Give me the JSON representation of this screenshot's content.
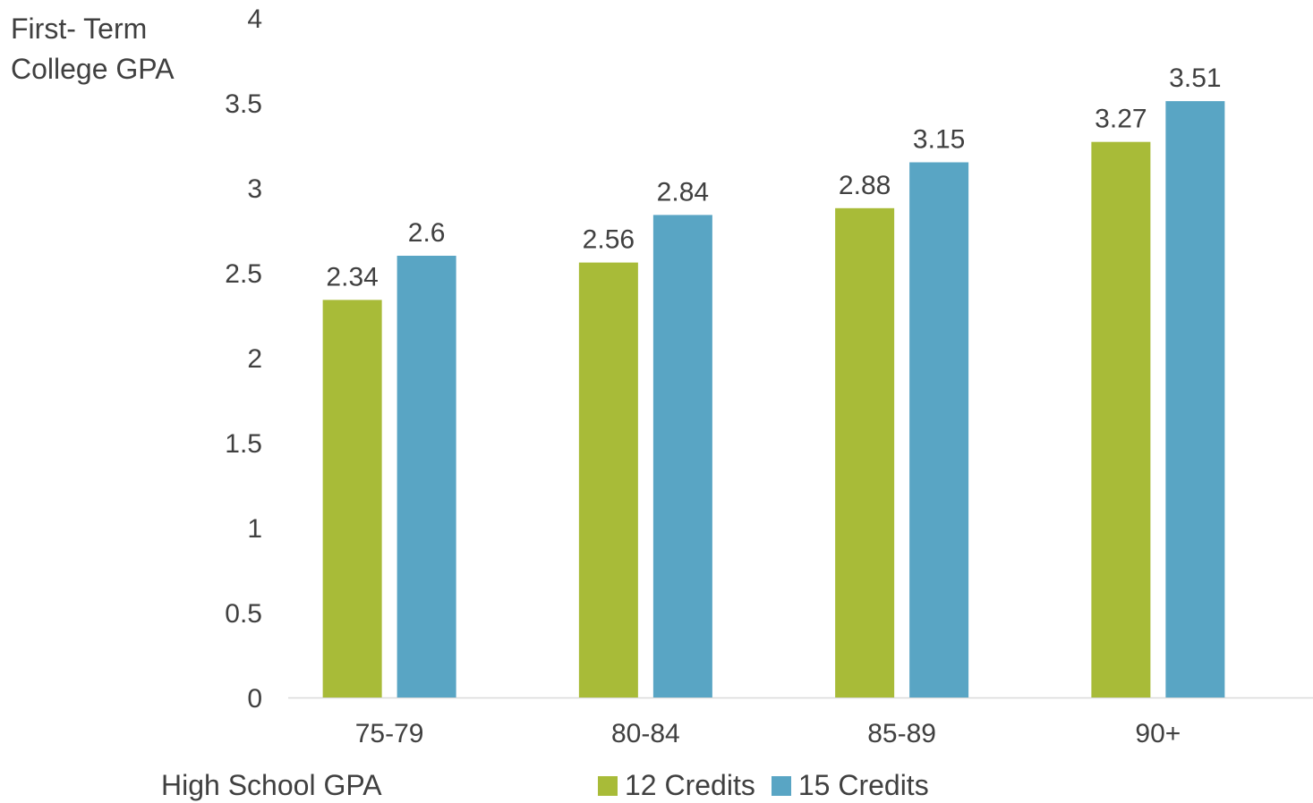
{
  "chart_data": {
    "type": "bar",
    "title": "",
    "ylabel": "First- Term\nCollege GPA",
    "xlabel": "High School GPA",
    "ylim": [
      0,
      4
    ],
    "yticks": [
      "0",
      "0.5",
      "1",
      "1.5",
      "2",
      "2.5",
      "3",
      "3.5",
      "4"
    ],
    "categories": [
      "75-79",
      "80-84",
      "85-89",
      "90+"
    ],
    "series": [
      {
        "name": "12 Credits",
        "color": "#A8BB38",
        "values": [
          2.34,
          2.56,
          2.88,
          3.27
        ]
      },
      {
        "name": "15 Credits",
        "color": "#59A5C4",
        "values": [
          2.6,
          2.84,
          3.15,
          3.51
        ]
      }
    ],
    "legend_position": "bottom"
  }
}
